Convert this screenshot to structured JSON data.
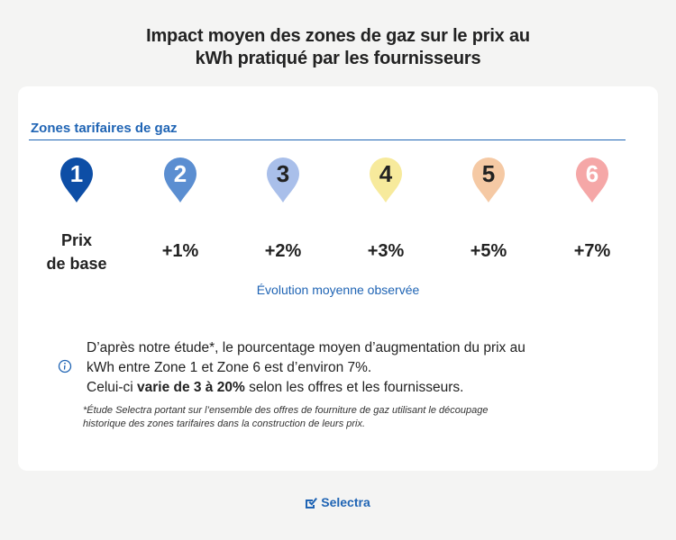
{
  "title": {
    "line1": "Impact moyen des zones de gaz sur le prix au",
    "line2": "kWh pratiqué par les fournisseurs"
  },
  "zones_heading": "Zones tarifaires de gaz",
  "zones": [
    {
      "number": "1",
      "color": "#0d4ea6",
      "label_line1": "Prix",
      "label_line2": "de base"
    },
    {
      "number": "2",
      "color": "#5b8ed1",
      "label": "+1%"
    },
    {
      "number": "3",
      "color": "#a9bfea",
      "label": "+2%"
    },
    {
      "number": "4",
      "color": "#f7ea9c",
      "label": "+3%"
    },
    {
      "number": "5",
      "color": "#f5c9a4",
      "label": "+5%"
    },
    {
      "number": "6",
      "color": "#f5a7a7",
      "label": "+7%"
    }
  ],
  "evolution_label": "Évolution moyenne observée",
  "info": {
    "icon": "info-icon",
    "line1": "D’après notre étude*, le pourcentage moyen d’augmentation du prix au",
    "line2": "kWh entre Zone 1 et Zone 6 est d’environ 7%.",
    "line3_before": "Celui-ci ",
    "line3_bold": "varie de 3 à 20%",
    "line3_after": " selon les offres et les fournisseurs."
  },
  "footnote": {
    "line1": "*Étude Selectra portant sur l’ensemble des offres de fourniture de gaz utilisant le découpage",
    "line2": "historique des zones tarifaires dans la construction de leurs prix."
  },
  "brand": {
    "name": "Selectra",
    "logo_icon": "checkmark-logo-icon",
    "color": "#1f64b4"
  }
}
